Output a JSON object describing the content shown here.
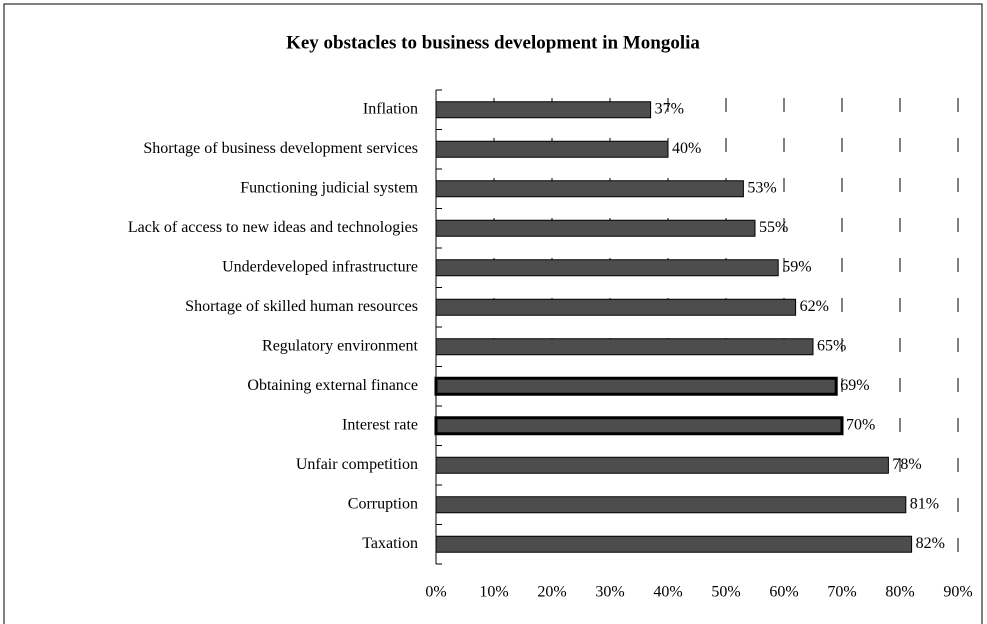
{
  "chart_data": {
    "type": "barh",
    "title": "Key obstacles to business development in Mongolia",
    "categories": [
      "Inflation",
      "Shortage of business development services",
      "Functioning judicial system",
      "Lack of access to new ideas and technologies",
      "Underdeveloped infrastructure",
      "Shortage of skilled human resources",
      "Regulatory environment",
      "Obtaining external finance",
      "Interest rate",
      "Unfair competition",
      "Corruption",
      "Taxation"
    ],
    "values": [
      37,
      40,
      53,
      55,
      59,
      62,
      65,
      69,
      70,
      78,
      81,
      82
    ],
    "value_labels": [
      "37%",
      "40%",
      "53%",
      "55%",
      "59%",
      "62%",
      "65%",
      "69%",
      "70%",
      "78%",
      "81%",
      "82%"
    ],
    "color": "#4d4d4d",
    "outlined": [
      7,
      8
    ],
    "xlim": [
      0,
      90
    ],
    "xticks": [
      {
        "value": 0,
        "label": "0%"
      },
      {
        "value": 10,
        "label": "10%"
      },
      {
        "value": 20,
        "label": "20%"
      },
      {
        "value": 30,
        "label": "30%"
      },
      {
        "value": 40,
        "label": "40%"
      },
      {
        "value": 50,
        "label": "50%"
      },
      {
        "value": 60,
        "label": "60%"
      },
      {
        "value": 70,
        "label": "70%"
      },
      {
        "value": 80,
        "label": "80%"
      },
      {
        "value": 90,
        "label": "90%"
      }
    ],
    "grid": true
  }
}
